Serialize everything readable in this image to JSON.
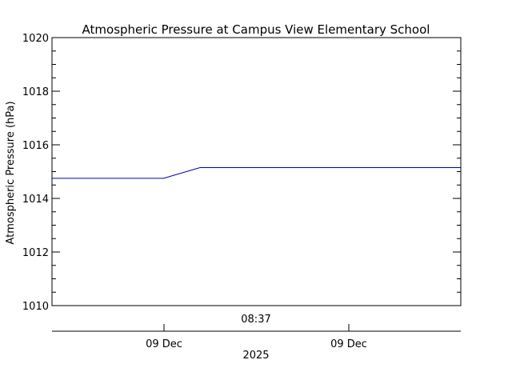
{
  "chart_data": {
    "type": "line",
    "title": "Atmospheric Pressure at Campus View Elementary School",
    "ylabel": "Atmospheric Pressure (hPa)",
    "ylim": [
      1010,
      1020
    ],
    "yticks": [
      1010,
      1012,
      1014,
      1016,
      1018,
      1020
    ],
    "y_minor_step": 0.5,
    "time_axis": {
      "tick_label": "08:37",
      "date_labels": [
        "09 Dec",
        "09 Dec"
      ],
      "year_label": "2025"
    },
    "series": [
      {
        "color": "#0000aa",
        "points": [
          [
            0,
            1014.75
          ],
          [
            0.273,
            1014.75
          ],
          [
            0.362,
            1015.15
          ],
          [
            1,
            1015.15
          ]
        ]
      }
    ],
    "grid": false
  }
}
